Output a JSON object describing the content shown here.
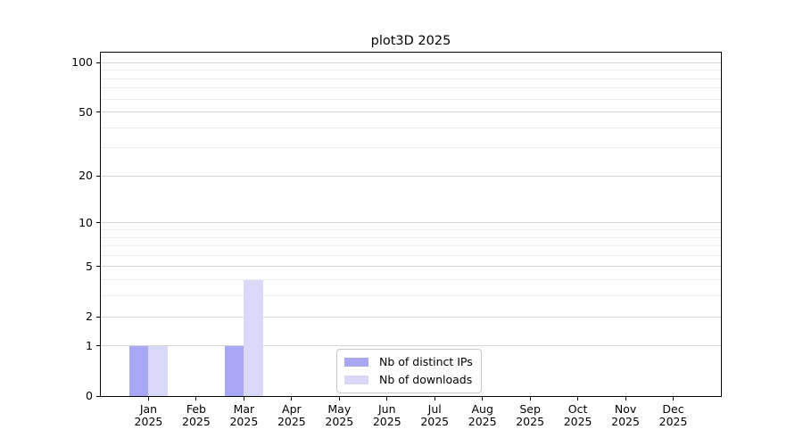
{
  "chart_data": {
    "type": "bar",
    "title": "plot3D 2025",
    "x_tick_labels": [
      "Jan\n2025",
      "Feb\n2025",
      "Mar\n2025",
      "Apr\n2025",
      "May\n2025",
      "Jun\n2025",
      "Jul\n2025",
      "Aug\n2025",
      "Sep\n2025",
      "Oct\n2025",
      "Nov\n2025",
      "Dec\n2025"
    ],
    "series": [
      {
        "name": "Nb of distinct IPs",
        "color": "#a7a7f4",
        "values": [
          1,
          0,
          1,
          0,
          0,
          0,
          0,
          0,
          0,
          0,
          0,
          0
        ]
      },
      {
        "name": "Nb of downloads",
        "color": "#d9d9f7",
        "values": [
          1,
          0,
          4,
          0,
          0,
          0,
          0,
          0,
          0,
          0,
          0,
          0
        ]
      }
    ],
    "yscale": "log1p",
    "ylim": [
      0,
      115
    ],
    "y_major_ticks": [
      0,
      1,
      2,
      5,
      10,
      20,
      50,
      100
    ],
    "y_minor_ticks": [
      3,
      4,
      6,
      7,
      8,
      9,
      30,
      40,
      60,
      70,
      80,
      90
    ],
    "grid": true,
    "legend_position": "lower center",
    "colors": {
      "major_grid": "#d4d4d4",
      "minor_grid": "#ececec",
      "axis": "#000000",
      "background": "#ffffff"
    }
  }
}
